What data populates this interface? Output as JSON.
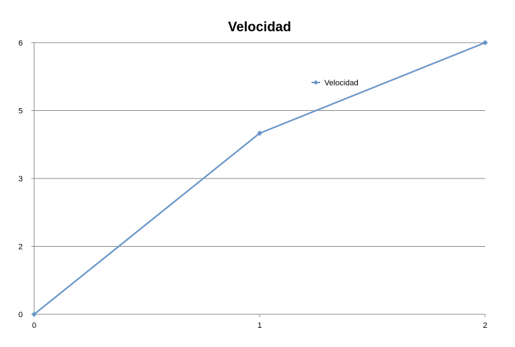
{
  "chart_data": {
    "type": "line",
    "title": "Velocidad",
    "xlabel": "",
    "ylabel": "",
    "x_tick_labels": [
      "0",
      "1",
      "2"
    ],
    "y_tick_labels": [
      "0",
      "2",
      "3",
      "5",
      "6"
    ],
    "ylim": [
      0,
      6
    ],
    "grid": "horizontal",
    "legend_position": "top-right inside plot",
    "series": [
      {
        "name": "Velocidad",
        "x": [
          0,
          1,
          2
        ],
        "y": [
          0,
          4,
          6
        ],
        "color": "#6a97c8",
        "marker": "diamond"
      }
    ]
  }
}
